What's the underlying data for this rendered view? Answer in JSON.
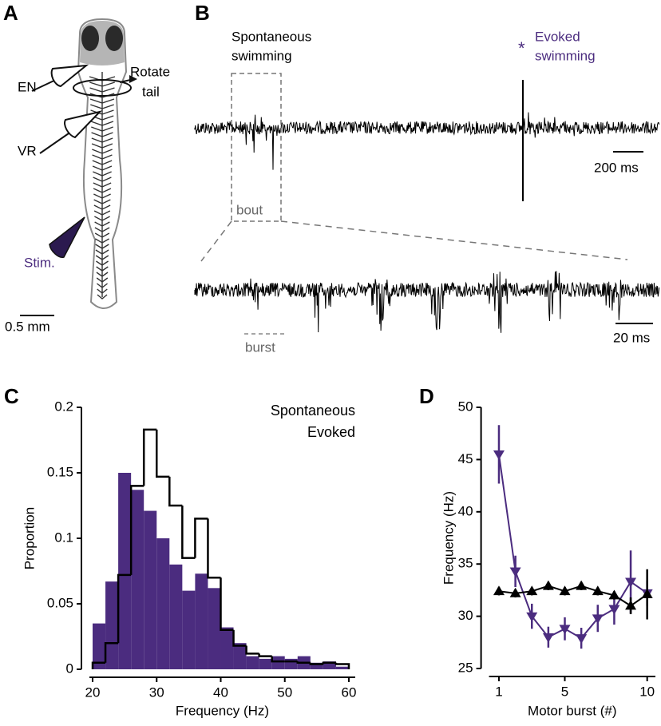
{
  "panel_a": {
    "label": "A",
    "electrode_en": "EN",
    "electrode_vr": "VR",
    "rotate_tail": [
      "Rotate",
      "tail"
    ],
    "stim": "Stim.",
    "scale_bar": "0.5 mm"
  },
  "panel_b": {
    "label": "B",
    "spontaneous": [
      "Spontaneous",
      "swimming"
    ],
    "stim_marker": "*",
    "evoked": [
      "Evoked",
      "swimming"
    ],
    "scale_bar_top": "200 ms",
    "bout": "bout",
    "scale_bar_bottom": "20 ms",
    "burst": "burst"
  },
  "chart_data": [
    {
      "type": "histogram",
      "panel": "C",
      "xlabel": "Frequency (Hz)",
      "ylabel": "Proportion",
      "bins": [
        20,
        22,
        24,
        26,
        28,
        30,
        32,
        34,
        36,
        38,
        40,
        42,
        44,
        46,
        48,
        50,
        52,
        54,
        56,
        58,
        60
      ],
      "series": [
        {
          "name": "Spontaneous",
          "color": "#000000",
          "style": "step",
          "values": [
            0.005,
            0.02,
            0.072,
            0.14,
            0.183,
            0.147,
            0.125,
            0.085,
            0.115,
            0.07,
            0.03,
            0.018,
            0.012,
            0.01,
            0.006,
            0.006,
            0.005,
            0.004,
            0.005,
            0.004
          ]
        },
        {
          "name": "Evoked",
          "color": "#4b2c7f",
          "style": "filled",
          "values": [
            0.035,
            0.067,
            0.15,
            0.137,
            0.121,
            0.1,
            0.08,
            0.06,
            0.073,
            0.062,
            0.032,
            0.02,
            0.01,
            0.008,
            0.01,
            0.008,
            0.01,
            0.005,
            0.006,
            0.002
          ]
        }
      ],
      "xlim": [
        19.5,
        61
      ],
      "ylim": [
        0,
        0.2
      ],
      "xticks": [
        20,
        30,
        40,
        50,
        60
      ],
      "yticks": [
        0,
        0.05,
        0.1,
        0.15,
        0.2
      ],
      "legend": "upper right"
    },
    {
      "type": "line",
      "panel": "D",
      "xlabel": "Motor burst (#)",
      "ylabel": "Frequency (Hz)",
      "x": [
        1,
        2,
        3,
        4,
        5,
        6,
        7,
        8,
        9,
        10
      ],
      "series": [
        {
          "color": "#000000",
          "marker": "triangle-up",
          "values": [
            32.4,
            32.2,
            32.4,
            32.9,
            32.4,
            32.9,
            32.4,
            32.0,
            31.0,
            32.1
          ],
          "errors": [
            0.4,
            0.4,
            0.4,
            0.4,
            0.4,
            0.4,
            0.4,
            0.4,
            0.8,
            2.4
          ]
        },
        {
          "color": "#4b2c7f",
          "marker": "triangle-down",
          "values": [
            45.5,
            34.3,
            30.0,
            28.0,
            28.8,
            27.9,
            29.8,
            30.7,
            33.3,
            32.2
          ],
          "errors": [
            2.8,
            1.5,
            1.2,
            1.0,
            1.1,
            1.0,
            1.3,
            1.5,
            3.0,
            1.2
          ]
        }
      ],
      "xlim": [
        0.4,
        10.5
      ],
      "ylim": [
        25,
        50
      ],
      "xticks": [
        1,
        5,
        10
      ],
      "yticks": [
        25,
        30,
        35,
        40,
        45,
        50
      ]
    }
  ]
}
